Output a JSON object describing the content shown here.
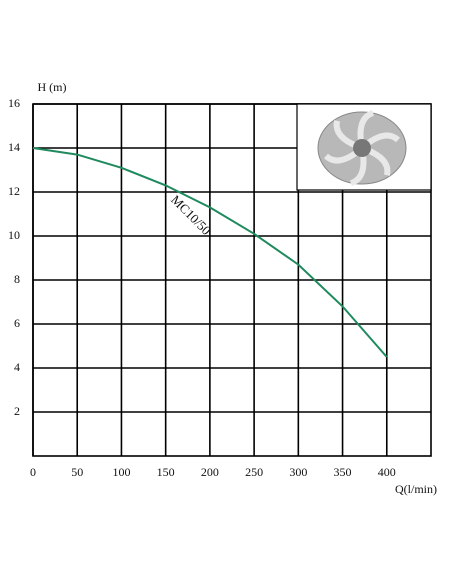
{
  "chart_data": {
    "type": "line",
    "y_label": "H (m)",
    "x_label": "Q(l/min)",
    "x": [
      0,
      50,
      100,
      150,
      200,
      250,
      300,
      350,
      400
    ],
    "series": [
      {
        "name": "MC10/50",
        "color": "#1e8a5e",
        "values": [
          14,
          13.7,
          13.1,
          12.3,
          11.3,
          10.1,
          8.7,
          6.8,
          4.5
        ]
      }
    ],
    "xlim": [
      0,
      450
    ],
    "ylim": [
      0,
      16
    ],
    "xticks": [
      0,
      50,
      100,
      150,
      200,
      250,
      300,
      350,
      400
    ],
    "yticks": [
      2,
      4,
      6,
      8,
      10,
      12,
      14,
      16
    ],
    "grid": true
  }
}
